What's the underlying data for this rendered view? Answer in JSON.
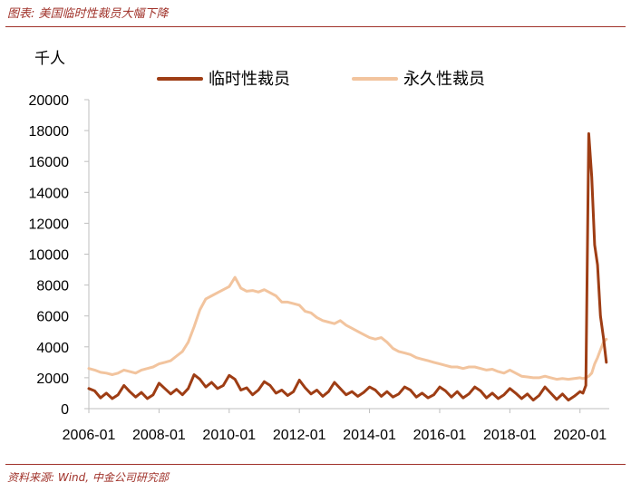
{
  "figure_title": "图表: 美国临时性裁员大幅下降",
  "source_note": "资料来源: Wind, 中金公司研究部",
  "colors": {
    "temporary": "#9e3d14",
    "permanent": "#f2c49e",
    "accent": "#a0322a"
  },
  "chart_data": {
    "type": "line",
    "title": "",
    "ylabel": "千人",
    "xlabel": "",
    "ylim": [
      0,
      20000
    ],
    "yticks": [
      0,
      2000,
      4000,
      6000,
      8000,
      10000,
      12000,
      14000,
      16000,
      18000,
      20000
    ],
    "xticks": [
      "2006-01",
      "2008-01",
      "2010-01",
      "2012-01",
      "2014-01",
      "2016-01",
      "2018-01",
      "2020-01"
    ],
    "grid": false,
    "legend_position": "top",
    "series": [
      {
        "name": "临时性裁员",
        "color": "#9e3d14",
        "points": [
          [
            "2006-01",
            1300
          ],
          [
            "2006-03",
            1150
          ],
          [
            "2006-05",
            700
          ],
          [
            "2006-07",
            1000
          ],
          [
            "2006-09",
            650
          ],
          [
            "2006-11",
            900
          ],
          [
            "2007-01",
            1500
          ],
          [
            "2007-03",
            1100
          ],
          [
            "2007-05",
            750
          ],
          [
            "2007-07",
            1050
          ],
          [
            "2007-09",
            650
          ],
          [
            "2007-11",
            900
          ],
          [
            "2008-01",
            1650
          ],
          [
            "2008-03",
            1300
          ],
          [
            "2008-05",
            950
          ],
          [
            "2008-07",
            1250
          ],
          [
            "2008-09",
            900
          ],
          [
            "2008-11",
            1300
          ],
          [
            "2009-01",
            2200
          ],
          [
            "2009-03",
            1900
          ],
          [
            "2009-05",
            1400
          ],
          [
            "2009-07",
            1700
          ],
          [
            "2009-09",
            1300
          ],
          [
            "2009-11",
            1500
          ],
          [
            "2010-01",
            2150
          ],
          [
            "2010-03",
            1900
          ],
          [
            "2010-05",
            1200
          ],
          [
            "2010-07",
            1350
          ],
          [
            "2010-09",
            900
          ],
          [
            "2010-11",
            1200
          ],
          [
            "2011-01",
            1750
          ],
          [
            "2011-03",
            1500
          ],
          [
            "2011-05",
            1000
          ],
          [
            "2011-07",
            1200
          ],
          [
            "2011-09",
            850
          ],
          [
            "2011-11",
            1100
          ],
          [
            "2012-01",
            1850
          ],
          [
            "2012-03",
            1350
          ],
          [
            "2012-05",
            950
          ],
          [
            "2012-07",
            1200
          ],
          [
            "2012-09",
            800
          ],
          [
            "2012-11",
            1100
          ],
          [
            "2013-01",
            1700
          ],
          [
            "2013-03",
            1300
          ],
          [
            "2013-05",
            900
          ],
          [
            "2013-07",
            1100
          ],
          [
            "2013-09",
            800
          ],
          [
            "2013-11",
            1050
          ],
          [
            "2014-01",
            1400
          ],
          [
            "2014-03",
            1200
          ],
          [
            "2014-05",
            800
          ],
          [
            "2014-07",
            1100
          ],
          [
            "2014-09",
            750
          ],
          [
            "2014-11",
            950
          ],
          [
            "2015-01",
            1400
          ],
          [
            "2015-03",
            1200
          ],
          [
            "2015-05",
            750
          ],
          [
            "2015-07",
            1000
          ],
          [
            "2015-09",
            700
          ],
          [
            "2015-11",
            900
          ],
          [
            "2016-01",
            1400
          ],
          [
            "2016-03",
            1150
          ],
          [
            "2016-05",
            750
          ],
          [
            "2016-07",
            1100
          ],
          [
            "2016-09",
            700
          ],
          [
            "2016-11",
            950
          ],
          [
            "2017-01",
            1400
          ],
          [
            "2017-03",
            1150
          ],
          [
            "2017-05",
            700
          ],
          [
            "2017-07",
            1000
          ],
          [
            "2017-09",
            650
          ],
          [
            "2017-11",
            900
          ],
          [
            "2018-01",
            1300
          ],
          [
            "2018-03",
            1000
          ],
          [
            "2018-05",
            650
          ],
          [
            "2018-07",
            950
          ],
          [
            "2018-09",
            550
          ],
          [
            "2018-11",
            850
          ],
          [
            "2019-01",
            1400
          ],
          [
            "2019-03",
            1000
          ],
          [
            "2019-05",
            600
          ],
          [
            "2019-07",
            950
          ],
          [
            "2019-09",
            550
          ],
          [
            "2019-11",
            800
          ],
          [
            "2020-01",
            1100
          ],
          [
            "2020-02",
            1000
          ],
          [
            "2020-03",
            1500
          ],
          [
            "2020-04",
            17800
          ],
          [
            "2020-05",
            15000
          ],
          [
            "2020-06",
            10600
          ],
          [
            "2020-07",
            9300
          ],
          [
            "2020-08",
            6000
          ],
          [
            "2020-09",
            4600
          ],
          [
            "2020-10",
            3000
          ]
        ]
      },
      {
        "name": "永久性裁员",
        "color": "#f2c49e",
        "points": [
          [
            "2006-01",
            2600
          ],
          [
            "2006-03",
            2500
          ],
          [
            "2006-05",
            2350
          ],
          [
            "2006-07",
            2300
          ],
          [
            "2006-09",
            2200
          ],
          [
            "2006-11",
            2300
          ],
          [
            "2007-01",
            2500
          ],
          [
            "2007-03",
            2400
          ],
          [
            "2007-05",
            2300
          ],
          [
            "2007-07",
            2500
          ],
          [
            "2007-09",
            2600
          ],
          [
            "2007-11",
            2700
          ],
          [
            "2008-01",
            2900
          ],
          [
            "2008-03",
            3000
          ],
          [
            "2008-05",
            3100
          ],
          [
            "2008-07",
            3400
          ],
          [
            "2008-09",
            3700
          ],
          [
            "2008-11",
            4300
          ],
          [
            "2009-01",
            5300
          ],
          [
            "2009-03",
            6400
          ],
          [
            "2009-05",
            7100
          ],
          [
            "2009-07",
            7300
          ],
          [
            "2009-09",
            7500
          ],
          [
            "2009-11",
            7700
          ],
          [
            "2010-01",
            7900
          ],
          [
            "2010-03",
            8500
          ],
          [
            "2010-05",
            7800
          ],
          [
            "2010-07",
            7600
          ],
          [
            "2010-09",
            7650
          ],
          [
            "2010-11",
            7550
          ],
          [
            "2011-01",
            7700
          ],
          [
            "2011-03",
            7500
          ],
          [
            "2011-05",
            7300
          ],
          [
            "2011-07",
            6900
          ],
          [
            "2011-09",
            6900
          ],
          [
            "2011-11",
            6800
          ],
          [
            "2012-01",
            6700
          ],
          [
            "2012-03",
            6300
          ],
          [
            "2012-05",
            6200
          ],
          [
            "2012-07",
            5900
          ],
          [
            "2012-09",
            5700
          ],
          [
            "2012-11",
            5600
          ],
          [
            "2013-01",
            5500
          ],
          [
            "2013-03",
            5700
          ],
          [
            "2013-05",
            5400
          ],
          [
            "2013-07",
            5200
          ],
          [
            "2013-09",
            5000
          ],
          [
            "2013-11",
            4800
          ],
          [
            "2014-01",
            4600
          ],
          [
            "2014-03",
            4500
          ],
          [
            "2014-05",
            4600
          ],
          [
            "2014-07",
            4300
          ],
          [
            "2014-09",
            3900
          ],
          [
            "2014-11",
            3700
          ],
          [
            "2015-01",
            3600
          ],
          [
            "2015-03",
            3500
          ],
          [
            "2015-05",
            3300
          ],
          [
            "2015-07",
            3200
          ],
          [
            "2015-09",
            3100
          ],
          [
            "2015-11",
            3000
          ],
          [
            "2016-01",
            2900
          ],
          [
            "2016-03",
            2800
          ],
          [
            "2016-05",
            2700
          ],
          [
            "2016-07",
            2700
          ],
          [
            "2016-09",
            2600
          ],
          [
            "2016-11",
            2700
          ],
          [
            "2017-01",
            2700
          ],
          [
            "2017-03",
            2600
          ],
          [
            "2017-05",
            2500
          ],
          [
            "2017-07",
            2550
          ],
          [
            "2017-09",
            2400
          ],
          [
            "2017-11",
            2300
          ],
          [
            "2018-01",
            2500
          ],
          [
            "2018-03",
            2300
          ],
          [
            "2018-05",
            2100
          ],
          [
            "2018-07",
            2050
          ],
          [
            "2018-09",
            2000
          ],
          [
            "2018-11",
            2000
          ],
          [
            "2019-01",
            2100
          ],
          [
            "2019-03",
            2000
          ],
          [
            "2019-05",
            1900
          ],
          [
            "2019-07",
            1950
          ],
          [
            "2019-09",
            1900
          ],
          [
            "2019-11",
            1950
          ],
          [
            "2020-01",
            2000
          ],
          [
            "2020-02",
            1950
          ],
          [
            "2020-03",
            2000
          ],
          [
            "2020-04",
            2100
          ],
          [
            "2020-05",
            2300
          ],
          [
            "2020-06",
            2900
          ],
          [
            "2020-07",
            3300
          ],
          [
            "2020-08",
            3800
          ],
          [
            "2020-09",
            4300
          ],
          [
            "2020-10",
            4500
          ]
        ]
      }
    ]
  }
}
